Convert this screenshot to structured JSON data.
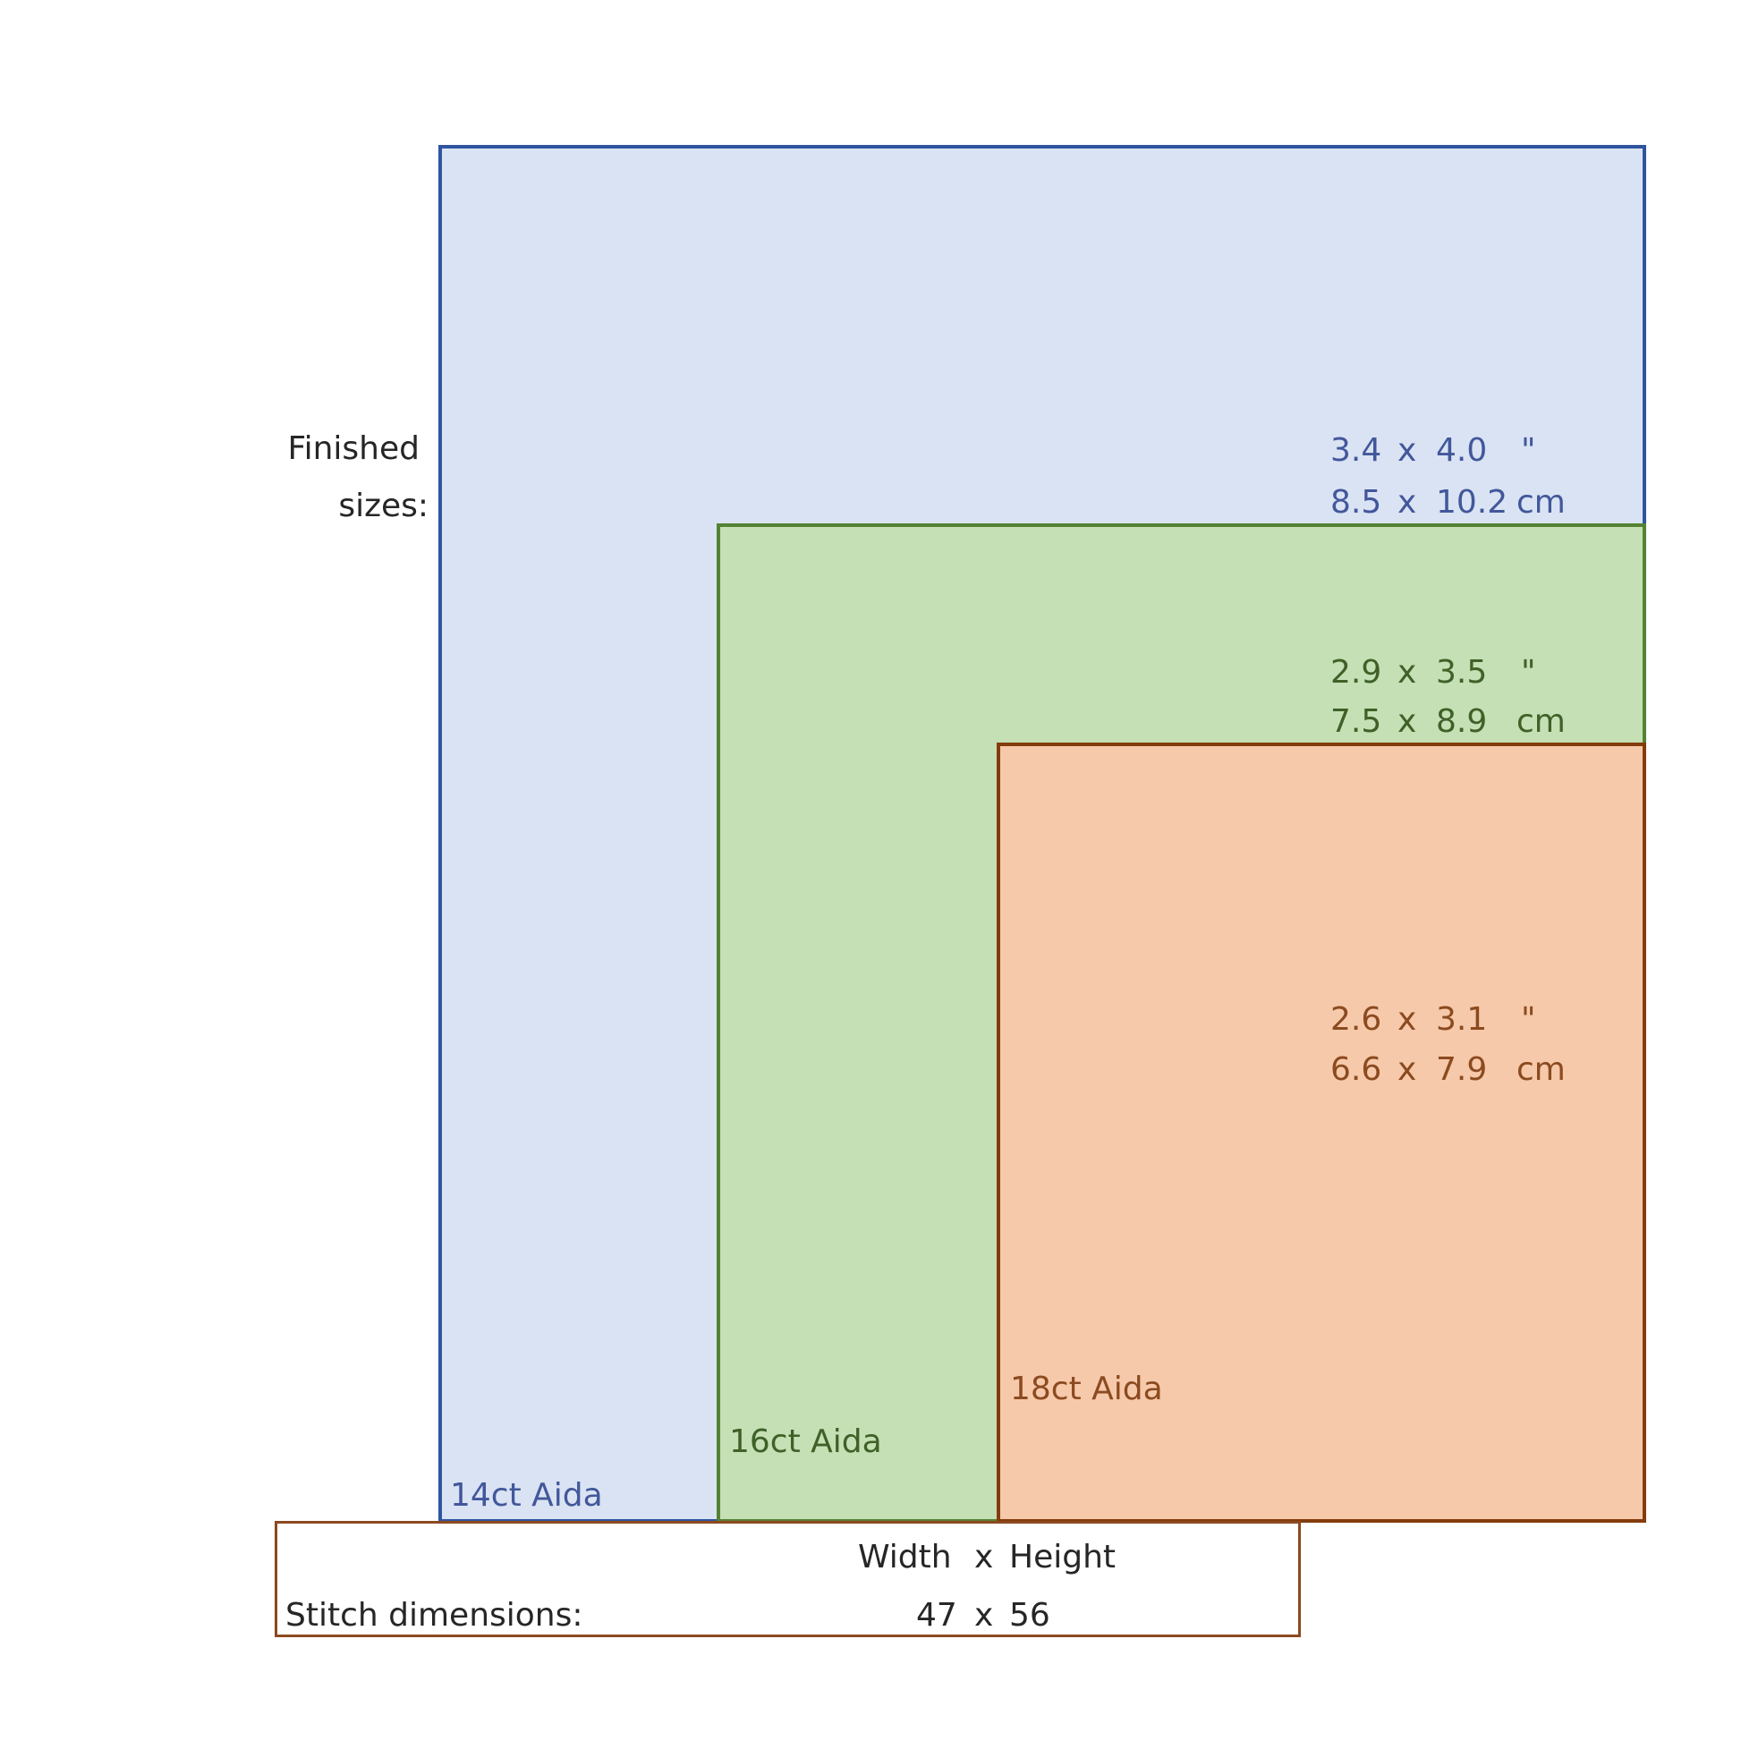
{
  "labels": {
    "finished_line1": "Finished",
    "finished_line2": "sizes:"
  },
  "fabrics": [
    {
      "name": "14ct Aida",
      "color_border": "#2f55a0",
      "color_fill": "#dae3f3",
      "inches": {
        "width": "3.4",
        "x": "x",
        "height": "4.0",
        "unit": "\""
      },
      "cm": {
        "width": "8.5",
        "x": "x",
        "height": "10.2",
        "unit": "cm"
      }
    },
    {
      "name": "16ct Aida",
      "color_border": "#548235",
      "color_fill": "#c5e0b4",
      "inches": {
        "width": "2.9",
        "x": "x",
        "height": "3.5",
        "unit": "\""
      },
      "cm": {
        "width": "7.5",
        "x": "x",
        "height": "8.9",
        "unit": "cm"
      }
    },
    {
      "name": "18ct Aida",
      "color_border": "#843c0c",
      "color_fill": "#f6c9aa",
      "inches": {
        "width": "2.6",
        "x": "x",
        "height": "3.1",
        "unit": "\""
      },
      "cm": {
        "width": "6.6",
        "x": "x",
        "height": "7.9",
        "unit": "cm"
      }
    }
  ],
  "stitch": {
    "header_width": "Width",
    "header_x": "x",
    "header_height": "Height",
    "label": "Stitch dimensions:",
    "width": "47",
    "x": "x",
    "height": "56"
  }
}
